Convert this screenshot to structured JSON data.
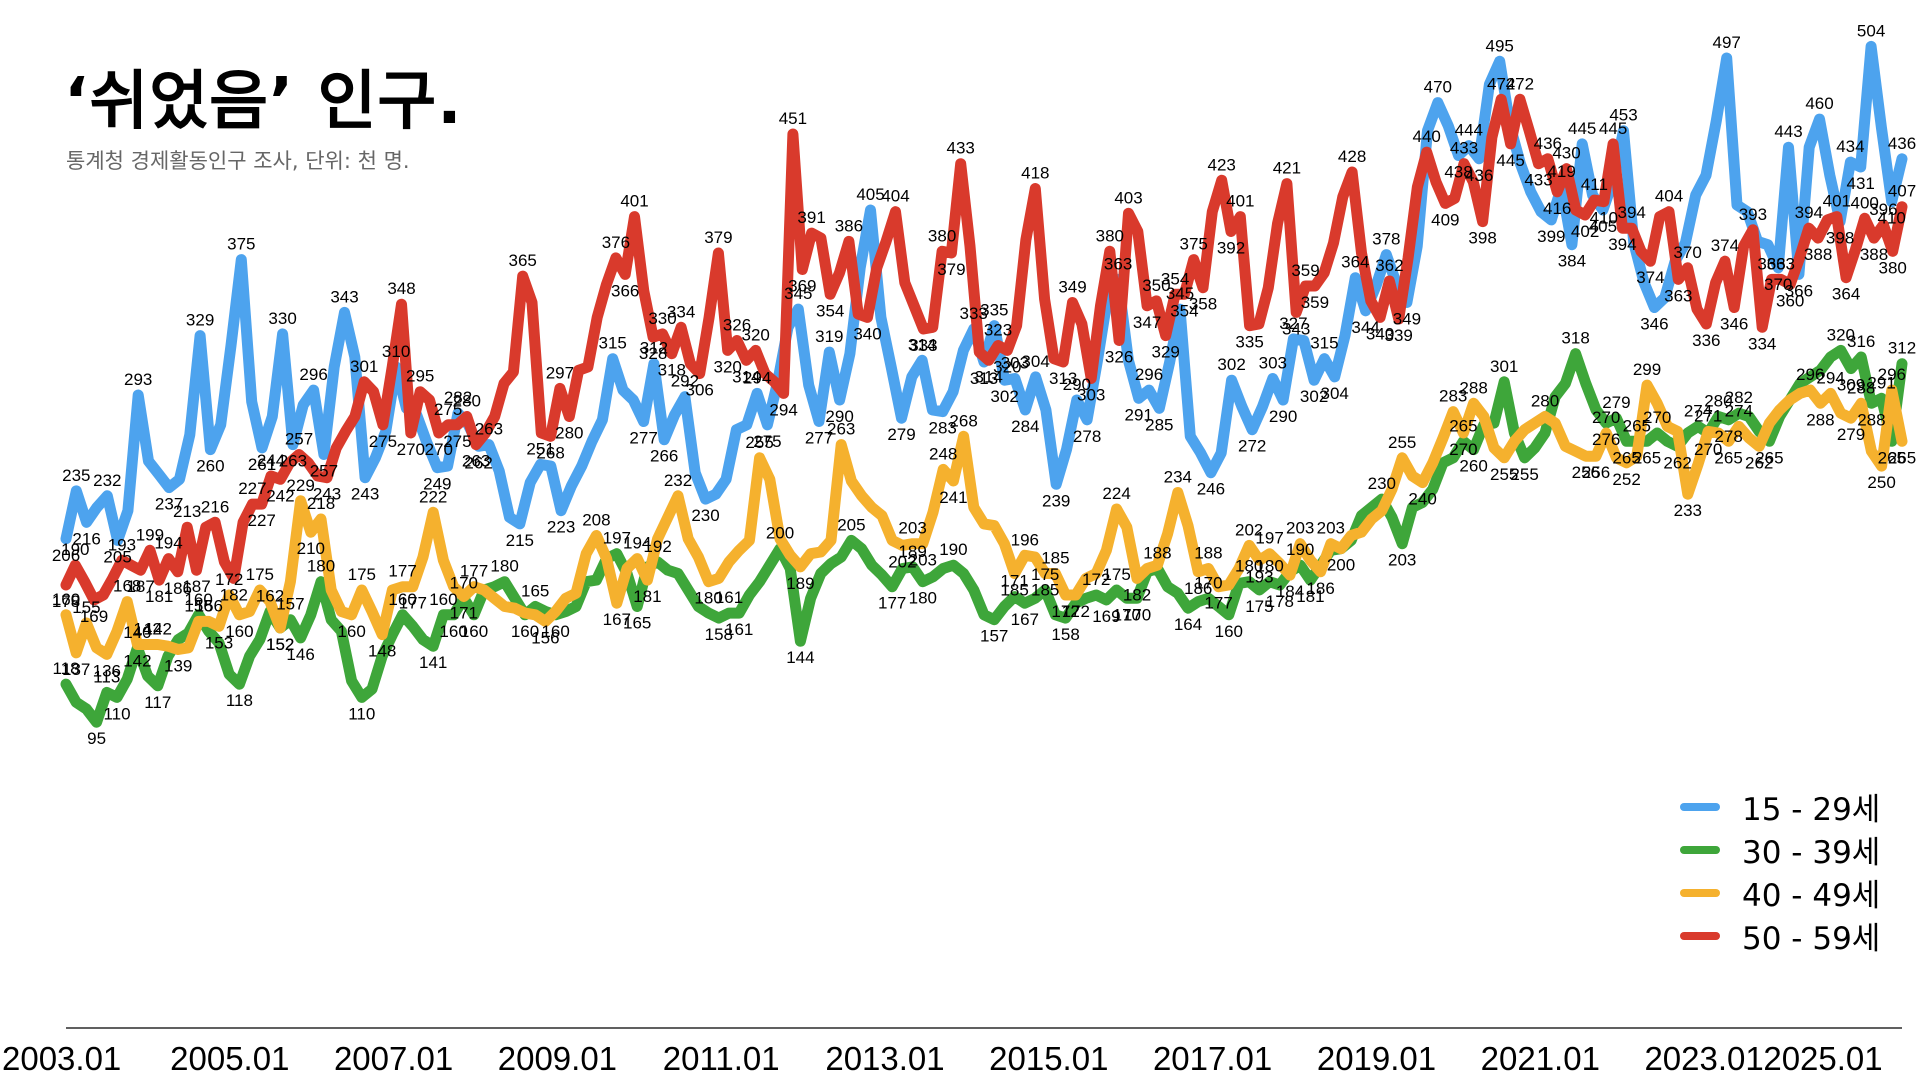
{
  "title": "‘쉬었음’ 인구.",
  "subtitle": "통계청 경제활동인구 조사, 단위: 천 명.",
  "chart_data": {
    "type": "line",
    "title": "‘쉬었음’ 인구.",
    "subtitle": "통계청 경제활동인구 조사, 단위: 천 명.",
    "xlabel": "",
    "ylabel": "",
    "x_start": "2003.01",
    "x_end": "2025.06",
    "x_ticks": [
      "2003.01",
      "2005.01",
      "2007.01",
      "2009.01",
      "2011.01",
      "2013.01",
      "2015.01",
      "2017.01",
      "2019.01",
      "2021.01",
      "2023.01",
      "2025.01"
    ],
    "ylim": [
      60,
      520
    ],
    "grid": false,
    "legend_position": "bottom-right",
    "series": [
      {
        "name": "15 - 29세",
        "color": "#4da3ee",
        "values": [
          206,
          235,
          216,
          225,
          232,
          205,
          223,
          293,
          253,
          245,
          237,
          242,
          269,
          329,
          260,
          275,
          323,
          375,
          289,
          261,
          280,
          330,
          263,
          287,
          296,
          257,
          310,
          343,
          316,
          243,
          255,
          271,
          310,
          285,
          281,
          264,
          249,
          250,
          282,
          275,
          262,
          263,
          247,
          219,
          215,
          240,
          251,
          250,
          223,
          238,
          250,
          265,
          278,
          315,
          296,
          290,
          277,
          312,
          266,
          281,
          292,
          246,
          230,
          233,
          242,
          272,
          275,
          294,
          275,
          301,
          334,
          345,
          299,
          277,
          319,
          290,
          318,
          370,
          405,
          340,
          310,
          279,
          304,
          314,
          284,
          283,
          295,
          320,
          333,
          313,
          335,
          302,
          303,
          284,
          304,
          284,
          239,
          260,
          290,
          278,
          314,
          353,
          363,
          314,
          291,
          296,
          285,
          313,
          345,
          268,
          258,
          246,
          258,
          302,
          286,
          272,
          286,
          303,
          290,
          327,
          326,
          302,
          315,
          304,
          329,
          364,
          344,
          359,
          378,
          360,
          349,
          383,
          453,
          470,
          456,
          438,
          444,
          436,
          481,
          495,
          456,
          433,
          416,
          404,
          399,
          419,
          384,
          445,
          414,
          405,
          423,
          453,
          385,
          361,
          346,
          352,
          374,
          385,
          414,
          426,
          459,
          497,
          408,
          404,
          386,
          384,
          370,
          443,
          366,
          443,
          460,
          426,
          398,
          434,
          431,
          504,
          455,
          410,
          436
        ]
      },
      {
        "name": "30 - 39세",
        "color": "#3ea63a",
        "values": [
          118,
          107,
          103,
          95,
          113,
          110,
          121,
          140,
          123,
          117,
          135,
          145,
          149,
          160,
          150,
          143,
          124,
          118,
          135,
          145,
          162,
          152,
          157,
          146,
          160,
          180,
          157,
          150,
          120,
          110,
          115,
          135,
          148,
          160,
          153,
          145,
          141,
          160,
          160,
          170,
          160,
          175,
          177,
          180,
          170,
          160,
          165,
          162,
          160,
          162,
          165,
          180,
          181,
          194,
          197,
          185,
          165,
          189,
          192,
          187,
          185,
          175,
          165,
          161,
          158,
          161,
          161,
          172,
          180,
          190,
          200,
          188,
          144,
          170,
          185,
          191,
          195,
          205,
          200,
          190,
          184,
          177,
          188,
          189,
          180,
          183,
          188,
          190,
          185,
          175,
          160,
          157,
          165,
          171,
          167,
          170,
          175,
          160,
          158,
          167,
          170,
          172,
          169,
          175,
          170,
          170,
          186,
          188,
          177,
          173,
          164,
          168,
          170,
          165,
          160,
          179,
          180,
          175,
          180,
          178,
          186,
          190,
          181,
          190,
          199,
          200,
          205,
          220,
          225,
          230,
          219,
          203,
          225,
          228,
          236,
          252,
          255,
          265,
          260,
          275,
          276,
          301,
          270,
          255,
          261,
          270,
          292,
          300,
          318,
          300,
          284,
          276,
          279,
          265,
          265,
          265,
          270,
          265,
          262,
          270,
          274,
          270,
          280,
          278,
          282,
          280,
          271,
          265,
          280,
          290,
          300,
          304,
          308,
          316,
          320,
          309,
          316,
          288,
          291,
          265,
          312
        ]
      },
      {
        "name": "40 - 49세",
        "color": "#f5b12e",
        "values": [
          160,
          137,
          155,
          140,
          136,
          150,
          168,
          142,
          142,
          142,
          141,
          139,
          140,
          156,
          156,
          153,
          172,
          160,
          162,
          175,
          168,
          152,
          180,
          229,
          210,
          218,
          175,
          162,
          160,
          175,
          162,
          148,
          175,
          177,
          177,
          195,
          222,
          193,
          177,
          171,
          177,
          175,
          170,
          165,
          164,
          161,
          160,
          156,
          162,
          170,
          173,
          197,
          208,
          194,
          167,
          188,
          194,
          181,
          206,
          219,
          232,
          206,
          195,
          180,
          182,
          192,
          199,
          205,
          255,
          242,
          206,
          196,
          189,
          197,
          198,
          205,
          263,
          241,
          232,
          225,
          220,
          205,
          202,
          203,
          203,
          222,
          248,
          241,
          268,
          225,
          215,
          214,
          203,
          185,
          196,
          195,
          185,
          185,
          172,
          172,
          182,
          185,
          199,
          224,
          213,
          182,
          188,
          190,
          209,
          234,
          214,
          186,
          188,
          177,
          178,
          188,
          202,
          193,
          197,
          191,
          184,
          203,
          193,
          186,
          203,
          200,
          208,
          210,
          218,
          223,
          236,
          255,
          244,
          240,
          252,
          267,
          283,
          270,
          288,
          280,
          261,
          255,
          265,
          272,
          276,
          280,
          276,
          262,
          259,
          256,
          256,
          270,
          255,
          252,
          256,
          299,
          288,
          274,
          271,
          233,
          251,
          271,
          270,
          265,
          274,
          267,
          262,
          276,
          284,
          290,
          294,
          296,
          288,
          294,
          282,
          279,
          288,
          259,
          250,
          296,
          265
        ]
      },
      {
        "name": "50 - 59세",
        "color": "#d93a2c",
        "values": [
          178,
          190,
          180,
          169,
          172,
          182,
          193,
          190,
          187,
          199,
          181,
          194,
          186,
          213,
          187,
          213,
          216,
          192,
          182,
          216,
          227,
          227,
          244,
          242,
          252,
          257,
          252,
          244,
          243,
          261,
          271,
          280,
          301,
          295,
          275,
          310,
          348,
          270,
          295,
          290,
          270,
          275,
          275,
          280,
          263,
          270,
          280,
          300,
          307,
          365,
          349,
          270,
          268,
          297,
          280,
          308,
          310,
          340,
          360,
          376,
          366,
          401,
          356,
          328,
          330,
          318,
          334,
          312,
          306,
          340,
          379,
          320,
          326,
          314,
          320,
          306,
          301,
          294,
          451,
          369,
          391,
          388,
          354,
          367,
          386,
          342,
          340,
          370,
          386,
          404,
          361,
          347,
          333,
          334,
          380,
          379,
          433,
          383,
          319,
          314,
          323,
          320,
          335,
          387,
          418,
          351,
          315,
          313,
          349,
          336,
          303,
          347,
          380,
          326,
          403,
          392,
          347,
          350,
          329,
          354,
          354,
          375,
          358,
          404,
          423,
          392,
          401,
          335,
          336,
          358,
          397,
          421,
          343,
          359,
          359,
          367,
          385,
          413,
          428,
          379,
          350,
          340,
          362,
          339,
          376,
          419,
          440,
          422,
          409,
          412,
          433,
          422,
          398,
          449,
          472,
          445,
          472,
          453,
          433,
          436,
          416,
          430,
          405,
          402,
          411,
          410,
          445,
          394,
          394,
          380,
          374,
          401,
          404,
          363,
          370,
          345,
          336,
          361,
          374,
          346,
          383,
          393,
          334,
          363,
          363,
          360,
          376,
          394,
          388,
          399,
          401,
          364,
          381,
          400,
          388,
          396,
          380,
          407
        ]
      }
    ]
  }
}
